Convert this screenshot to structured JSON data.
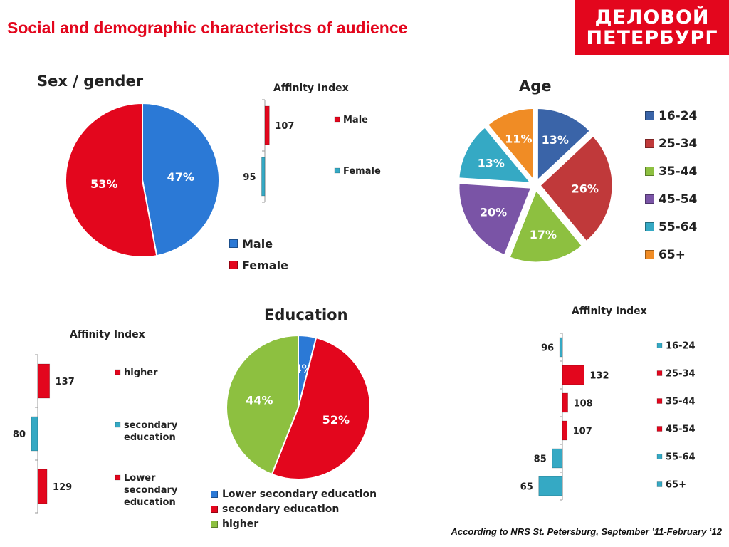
{
  "title": "Social and demographic characteristcs of audience",
  "logo": {
    "line1": "ДЕЛОВОЙ",
    "line2": "ПЕТЕРБУРГ"
  },
  "source_note": "According to NRS St. Petersburg, September ’11-February ‘12",
  "colors": {
    "red": "#e3061d",
    "blue": "#2b79d6",
    "teal": "#35a9c4",
    "green": "#8dc040",
    "purple": "#7a54a6",
    "orange": "#f08c25",
    "darkblue": "#3a64a8",
    "darkred": "#c0393a"
  },
  "chart_data": [
    {
      "id": "sex",
      "type": "pie",
      "title": "Sex / gender",
      "categories": [
        "Male",
        "Female"
      ],
      "values": [
        47,
        53
      ],
      "labels": [
        "47%",
        "53%"
      ],
      "colors": [
        "#2b79d6",
        "#e3061d"
      ],
      "legend": [
        "Male",
        "Female"
      ]
    },
    {
      "id": "sex_affinity",
      "type": "bar",
      "title": "Affinity Index",
      "categories": [
        "Male",
        "Female"
      ],
      "values": [
        107,
        95
      ],
      "labels": [
        "107",
        "95"
      ],
      "colors": [
        "#e3061d",
        "#35a9c4"
      ],
      "baseline": 100
    },
    {
      "id": "age",
      "type": "pie",
      "title": "Age",
      "categories": [
        "16-24",
        "25-34",
        "35-44",
        "45-54",
        "55-64",
        "65+"
      ],
      "values": [
        13,
        26,
        17,
        20,
        13,
        11
      ],
      "labels": [
        "13%",
        "26%",
        "17%",
        "20%",
        "13%",
        "11%"
      ],
      "colors": [
        "#3a64a8",
        "#c0393a",
        "#8dc040",
        "#7a54a6",
        "#35a9c4",
        "#f08c25"
      ],
      "legend": [
        "16-24",
        "25-34",
        "35-44",
        "45-54",
        "55-64",
        "65+"
      ]
    },
    {
      "id": "education",
      "type": "pie",
      "title": "Education",
      "categories": [
        "Lower secondary  education",
        "secondary education",
        "higher"
      ],
      "values": [
        4,
        52,
        44
      ],
      "labels": [
        "4%",
        "52%",
        "44%"
      ],
      "colors": [
        "#2b79d6",
        "#e3061d",
        "#8dc040"
      ],
      "legend": [
        "Lower secondary  education",
        "secondary education",
        "higher"
      ]
    },
    {
      "id": "education_affinity",
      "type": "bar",
      "title": "Affinity Index",
      "categories": [
        "higher",
        "secondary education",
        "Lower secondary education"
      ],
      "values": [
        137,
        80,
        129
      ],
      "labels": [
        "137",
        "80",
        "129"
      ],
      "colors": [
        "#e3061d",
        "#35a9c4",
        "#e3061d"
      ],
      "baseline": 100
    },
    {
      "id": "age_affinity",
      "type": "bar",
      "title": "Affinity Index",
      "categories": [
        "16-24",
        "25-34",
        "35-44",
        "45-54",
        "55-64",
        "65+"
      ],
      "values": [
        96,
        132,
        108,
        107,
        85,
        65
      ],
      "labels": [
        "96",
        "132",
        "108",
        "107",
        "85",
        "65"
      ],
      "colors": [
        "#35a9c4",
        "#e3061d",
        "#e3061d",
        "#e3061d",
        "#35a9c4",
        "#35a9c4"
      ],
      "baseline": 100
    }
  ]
}
